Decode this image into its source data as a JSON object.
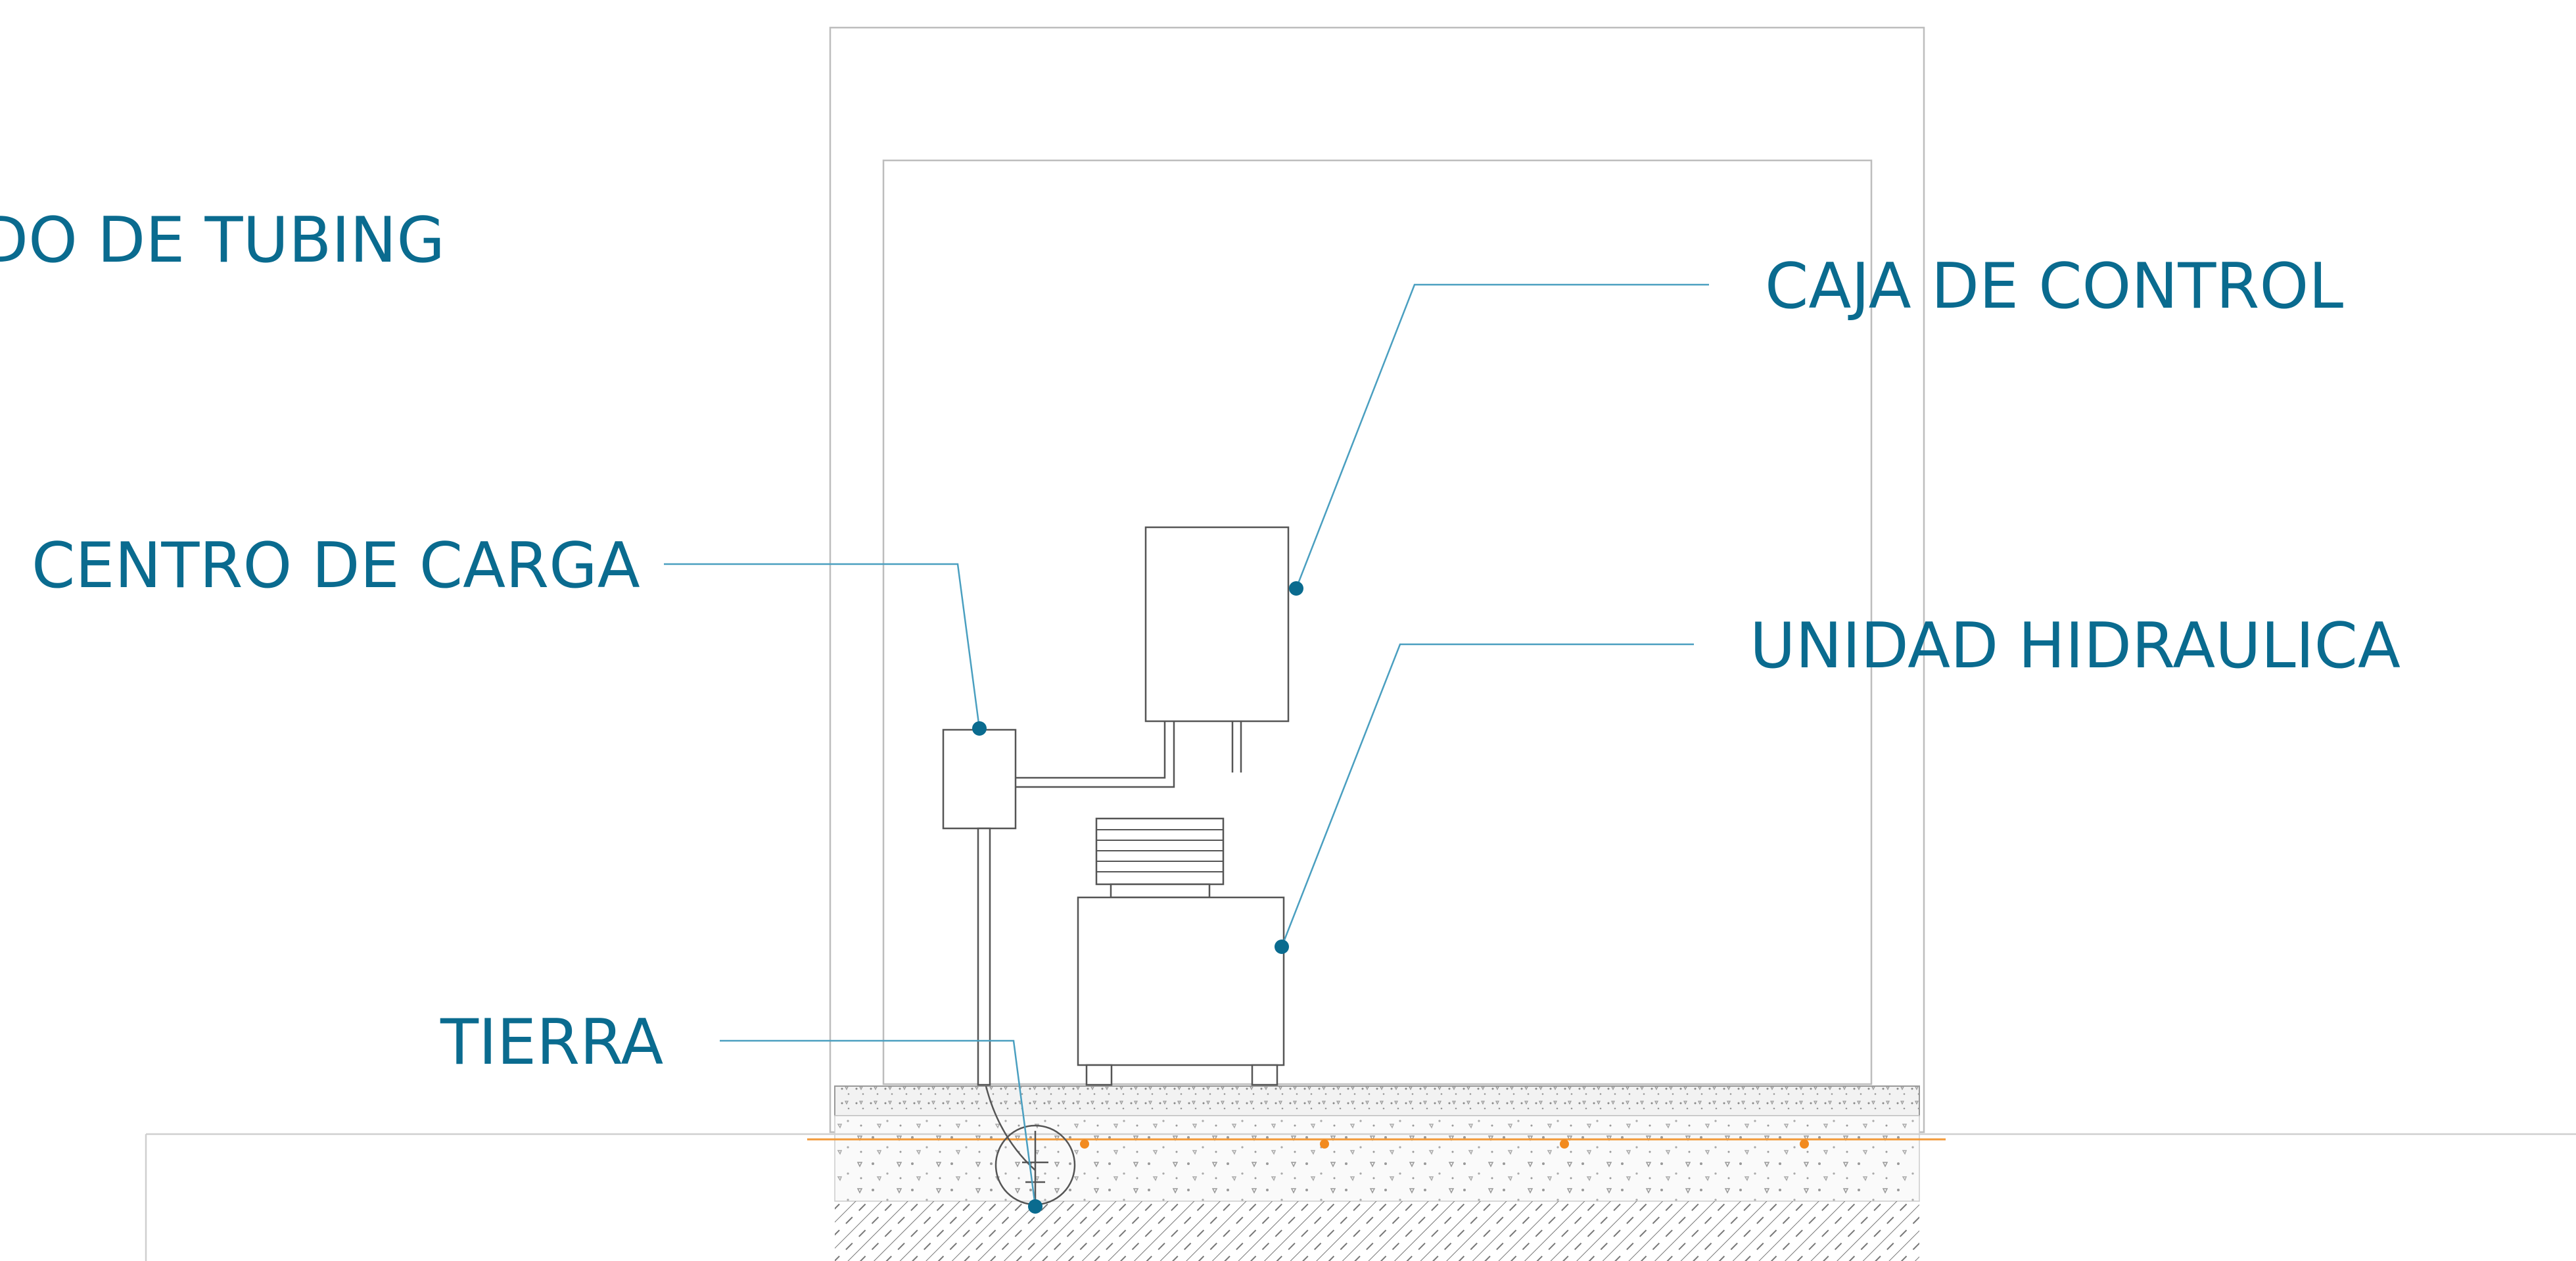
{
  "labels": {
    "tubing": "DO DE TUBING",
    "control_box": "CAJA DE CONTROL",
    "load_center": "CENTRO DE CARGA",
    "hydraulic_unit": "UNIDAD HIDRAULICA",
    "ground": "TIERRA"
  },
  "colors": {
    "label": "#0a6b8f",
    "leader": "#4a9fc0",
    "outline": "#bdbdbd",
    "equipment": "#555555",
    "pipe": "#f29a3a"
  }
}
